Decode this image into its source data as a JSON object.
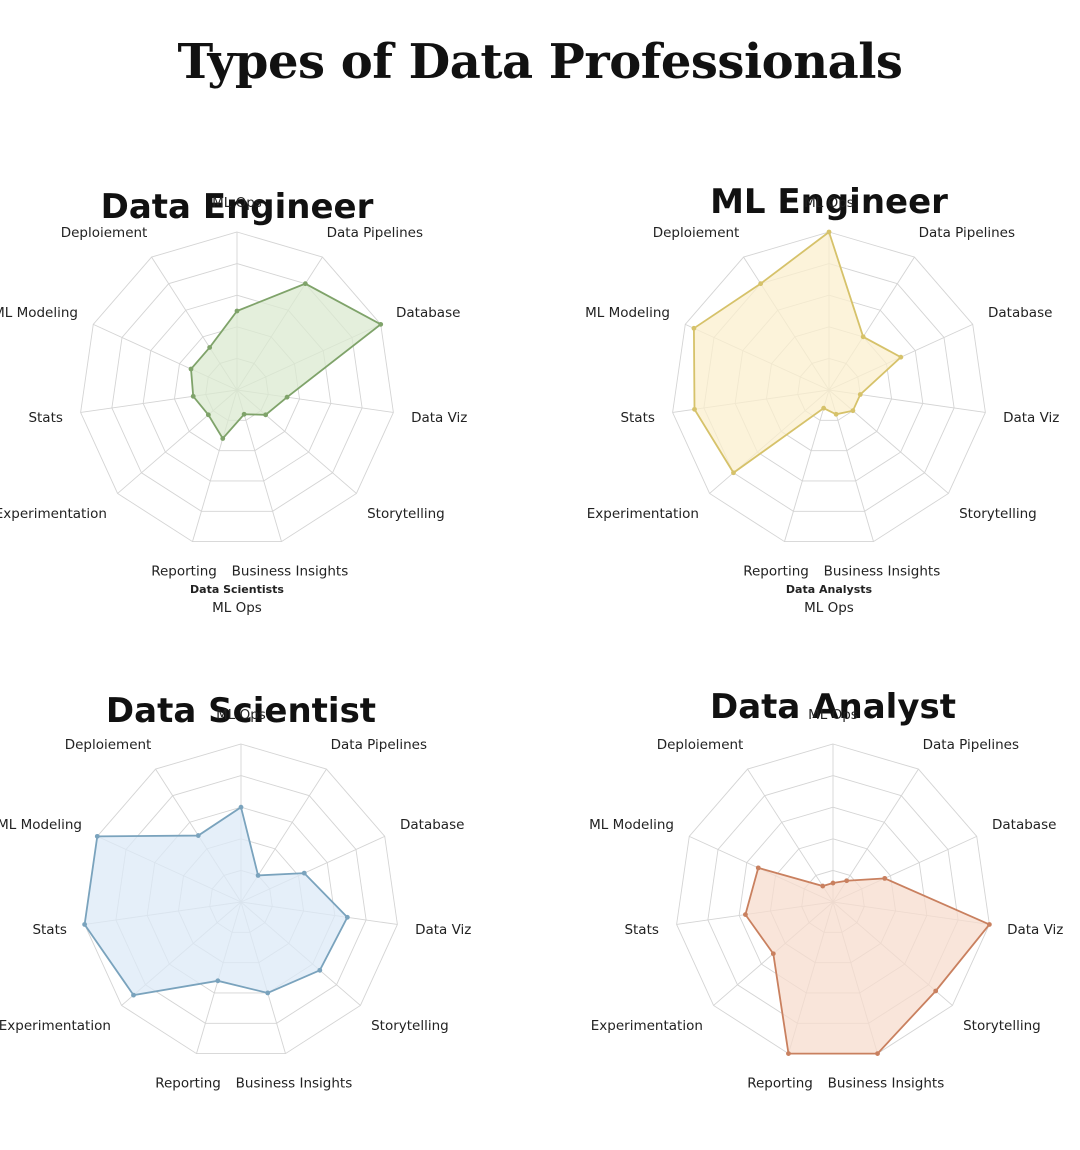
{
  "title": "Types of Data Professionals",
  "chart_data": [
    {
      "type": "radar",
      "title": "Data Engineer",
      "color": "#7fa36a",
      "fill": "#dbead0",
      "axes": [
        "ML Ops",
        "Data Pipelines",
        "Database",
        "Data Viz",
        "Storytelling",
        "Business Insights",
        "Reporting",
        "Experimentation",
        "Stats",
        "ML Modeling",
        "Deploiement"
      ],
      "values": [
        2.5,
        4.0,
        5.0,
        1.6,
        1.2,
        0.8,
        1.6,
        1.2,
        1.4,
        1.6,
        1.6
      ],
      "rlim": [
        0,
        5
      ],
      "grid": true,
      "note": {
        "title": "Data Scientists",
        "subtitle": "ML Ops"
      }
    },
    {
      "type": "radar",
      "title": "ML Engineer",
      "color": "#d6c26a",
      "fill": "#fbefce",
      "axes": [
        "ML Ops",
        "Data Pipelines",
        "Database",
        "Data Viz",
        "Storytelling",
        "Business Insights",
        "Reporting",
        "Experimentation",
        "Stats",
        "ML Modeling",
        "Deploiement"
      ],
      "values": [
        5.0,
        2.0,
        2.5,
        1.0,
        1.0,
        0.8,
        0.6,
        4.0,
        4.3,
        4.7,
        4.0
      ],
      "rlim": [
        0,
        5
      ],
      "grid": true,
      "note": {
        "title": "Data Analysts",
        "subtitle": "ML Ops"
      }
    },
    {
      "type": "radar",
      "title": "Data Scientist",
      "color": "#7aa3bd",
      "fill": "#dce9f7",
      "axes": [
        "ML Ops",
        "Data Pipelines",
        "Database",
        "Data Viz",
        "Storytelling",
        "Business Insights",
        "Reporting",
        "Experimentation",
        "Stats",
        "ML Modeling",
        "Deploiement"
      ],
      "values": [
        3.0,
        1.0,
        2.2,
        3.4,
        3.3,
        3.0,
        2.6,
        4.5,
        5.0,
        5.0,
        2.5
      ],
      "rlim": [
        0,
        5
      ],
      "grid": true
    },
    {
      "type": "radar",
      "title": "Data Analyst",
      "color": "#c9805f",
      "fill": "#f7dccd",
      "axes": [
        "ML Ops",
        "Data Pipelines",
        "Database",
        "Data Viz",
        "Storytelling",
        "Business Insights",
        "Reporting",
        "Experimentation",
        "Stats",
        "ML Modeling",
        "Deploiement"
      ],
      "values": [
        0.6,
        0.8,
        1.8,
        5.0,
        4.3,
        5.0,
        5.0,
        2.5,
        2.8,
        2.6,
        0.6
      ],
      "rlim": [
        0,
        5
      ],
      "grid": true
    }
  ]
}
